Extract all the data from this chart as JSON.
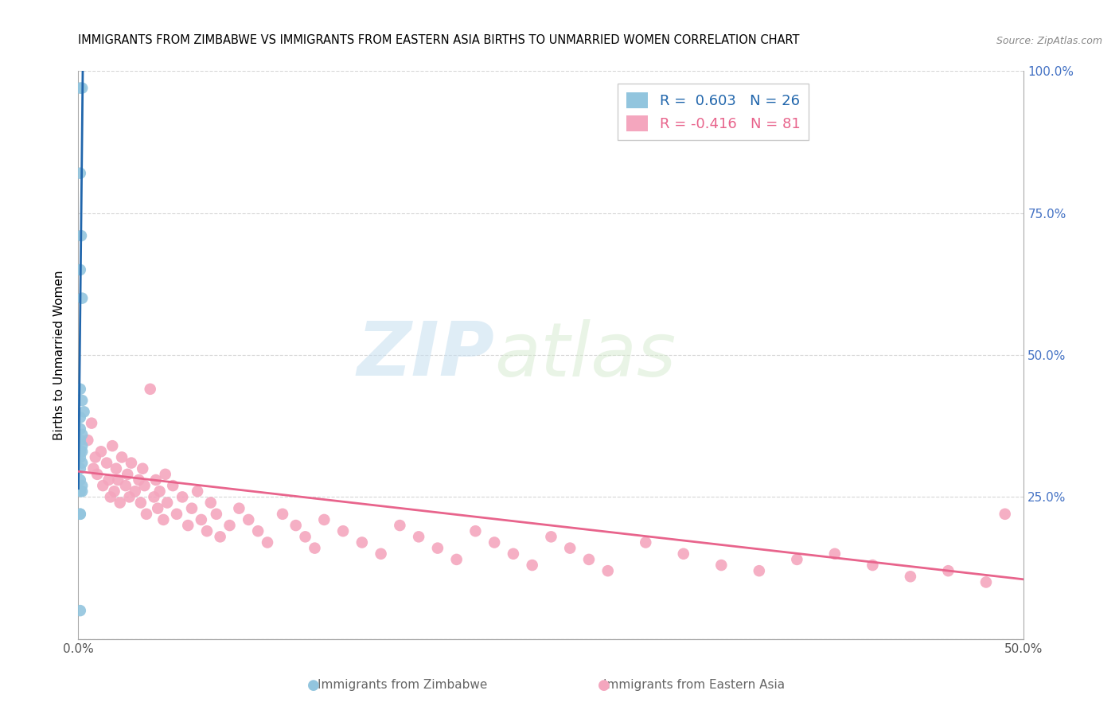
{
  "title": "IMMIGRANTS FROM ZIMBABWE VS IMMIGRANTS FROM EASTERN ASIA BIRTHS TO UNMARRIED WOMEN CORRELATION CHART",
  "source": "Source: ZipAtlas.com",
  "ylabel": "Births to Unmarried Women",
  "xlim": [
    0.0,
    0.5
  ],
  "ylim": [
    0.0,
    1.0
  ],
  "color_zimbabwe": "#92c5de",
  "color_eastern_asia": "#f4a6be",
  "color_line_zimbabwe": "#2166ac",
  "color_line_eastern_asia": "#e8648c",
  "legend_label_zimbabwe": "Immigrants from Zimbabwe",
  "legend_label_eastern_asia": "Immigrants from Eastern Asia",
  "watermark_zip": "ZIP",
  "watermark_atlas": "atlas",
  "zimbabwe_x": [
    0.001,
    0.002,
    0.001,
    0.0015,
    0.001,
    0.002,
    0.001,
    0.002,
    0.003,
    0.001,
    0.001,
    0.002,
    0.001,
    0.002,
    0.001,
    0.002,
    0.001,
    0.002,
    0.001,
    0.001,
    0.002,
    0.001,
    0.002,
    0.001,
    0.001,
    0.001
  ],
  "zimbabwe_y": [
    0.97,
    0.97,
    0.82,
    0.71,
    0.65,
    0.6,
    0.44,
    0.42,
    0.4,
    0.39,
    0.37,
    0.36,
    0.35,
    0.34,
    0.33,
    0.33,
    0.32,
    0.31,
    0.3,
    0.28,
    0.27,
    0.26,
    0.26,
    0.22,
    0.22,
    0.05
  ],
  "eastern_asia_x": [
    0.005,
    0.007,
    0.008,
    0.009,
    0.01,
    0.012,
    0.013,
    0.015,
    0.016,
    0.017,
    0.018,
    0.019,
    0.02,
    0.021,
    0.022,
    0.023,
    0.025,
    0.026,
    0.027,
    0.028,
    0.03,
    0.032,
    0.033,
    0.034,
    0.035,
    0.036,
    0.038,
    0.04,
    0.041,
    0.042,
    0.043,
    0.045,
    0.046,
    0.047,
    0.05,
    0.052,
    0.055,
    0.058,
    0.06,
    0.063,
    0.065,
    0.068,
    0.07,
    0.073,
    0.075,
    0.08,
    0.085,
    0.09,
    0.095,
    0.1,
    0.108,
    0.115,
    0.12,
    0.125,
    0.13,
    0.14,
    0.15,
    0.16,
    0.17,
    0.18,
    0.19,
    0.2,
    0.21,
    0.22,
    0.23,
    0.24,
    0.25,
    0.26,
    0.27,
    0.28,
    0.3,
    0.32,
    0.34,
    0.36,
    0.38,
    0.4,
    0.42,
    0.44,
    0.46,
    0.48,
    0.49
  ],
  "eastern_asia_y": [
    0.35,
    0.38,
    0.3,
    0.32,
    0.29,
    0.33,
    0.27,
    0.31,
    0.28,
    0.25,
    0.34,
    0.26,
    0.3,
    0.28,
    0.24,
    0.32,
    0.27,
    0.29,
    0.25,
    0.31,
    0.26,
    0.28,
    0.24,
    0.3,
    0.27,
    0.22,
    0.44,
    0.25,
    0.28,
    0.23,
    0.26,
    0.21,
    0.29,
    0.24,
    0.27,
    0.22,
    0.25,
    0.2,
    0.23,
    0.26,
    0.21,
    0.19,
    0.24,
    0.22,
    0.18,
    0.2,
    0.23,
    0.21,
    0.19,
    0.17,
    0.22,
    0.2,
    0.18,
    0.16,
    0.21,
    0.19,
    0.17,
    0.15,
    0.2,
    0.18,
    0.16,
    0.14,
    0.19,
    0.17,
    0.15,
    0.13,
    0.18,
    0.16,
    0.14,
    0.12,
    0.17,
    0.15,
    0.13,
    0.12,
    0.14,
    0.15,
    0.13,
    0.11,
    0.12,
    0.1,
    0.22
  ]
}
